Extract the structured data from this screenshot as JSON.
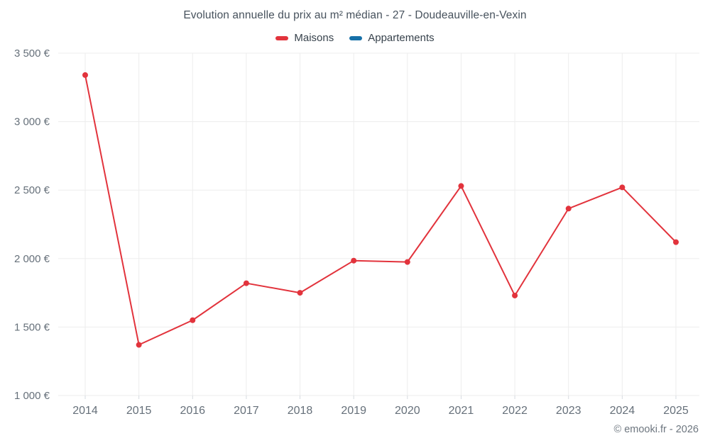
{
  "title": "Evolution annuelle du prix au m² médian - 27 - Doudeauville-en-Vexin",
  "copyright": "© emooki.fr - 2026",
  "legend": [
    {
      "label": "Maisons",
      "color": "#e2333c"
    },
    {
      "label": "Appartements",
      "color": "#1670a8"
    }
  ],
  "chart_data": {
    "type": "line",
    "title": "Evolution annuelle du prix au m² médian - 27 - Doudeauville-en-Vexin",
    "categories": [
      "2014",
      "2015",
      "2016",
      "2017",
      "2018",
      "2019",
      "2020",
      "2021",
      "2022",
      "2023",
      "2024",
      "2025"
    ],
    "series": [
      {
        "name": "Maisons",
        "color": "#e2333c",
        "values": [
          3340,
          1370,
          1550,
          1820,
          1750,
          1985,
          1975,
          2530,
          1730,
          2365,
          2520,
          2120
        ]
      },
      {
        "name": "Appartements",
        "color": "#1670a8",
        "values": []
      }
    ],
    "xlabel": "",
    "ylabel": "",
    "ylim": [
      1000,
      3500
    ],
    "ytick_step": 500,
    "ytick_format": "space-thousands-euro",
    "grid": true,
    "legend_position": "top"
  }
}
